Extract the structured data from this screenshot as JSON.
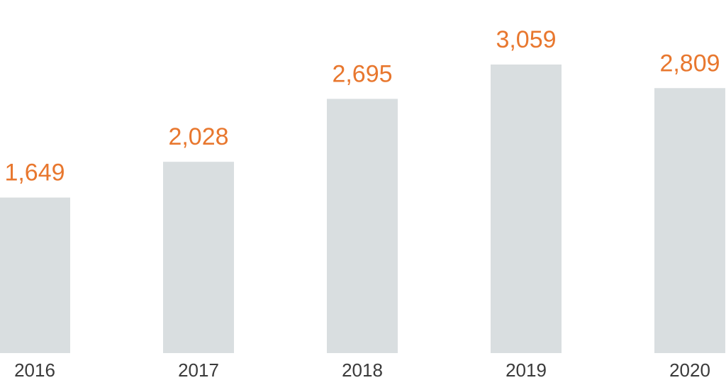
{
  "chart_data": {
    "type": "bar",
    "title": "",
    "xlabel": "",
    "ylabel": "",
    "categories": [
      "2016",
      "2017",
      "2018",
      "2019",
      "2020"
    ],
    "values": [
      1649,
      2028,
      2695,
      3059,
      2809
    ],
    "value_labels": [
      "1,649",
      "2,028",
      "2,695",
      "3,059",
      "2,809"
    ],
    "ylim": [
      0,
      3059
    ],
    "grid": false,
    "legend": "none",
    "colors": {
      "bar": "#d9dee0",
      "value_label": "#e8772e",
      "tick_label": "#3a3a3a"
    }
  }
}
